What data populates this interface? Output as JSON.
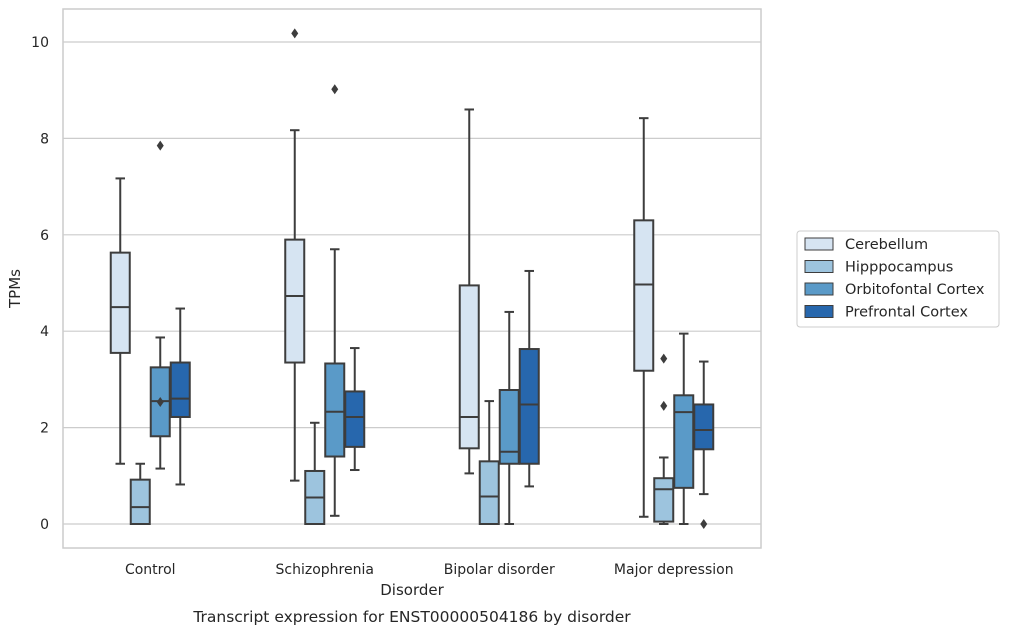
{
  "chart_data": {
    "type": "box",
    "title": "",
    "caption": "Transcript expression for ENST00000504186 by disorder",
    "xlabel": "Disorder",
    "ylabel": "TPMs",
    "ylim": [
      -0.45,
      10.7
    ],
    "yticks": [
      0,
      2,
      4,
      6,
      8,
      10
    ],
    "grid": true,
    "legend_position": "right",
    "categories": [
      "Control",
      "Schizophrenia",
      "Bipolar disorder",
      "Major depression"
    ],
    "series": [
      {
        "name": "Cerebellum",
        "color": "#d6e4f2",
        "boxes": [
          {
            "whisker_low": 1.25,
            "q1": 3.55,
            "median": 4.5,
            "q3": 5.63,
            "whisker_high": 7.17,
            "outliers": []
          },
          {
            "whisker_low": 0.9,
            "q1": 3.35,
            "median": 4.73,
            "q3": 5.9,
            "whisker_high": 8.17,
            "outliers": [
              10.18
            ]
          },
          {
            "whisker_low": 1.05,
            "q1": 1.57,
            "median": 2.22,
            "q3": 4.95,
            "whisker_high": 8.6,
            "outliers": []
          },
          {
            "whisker_low": 0.15,
            "q1": 3.18,
            "median": 4.97,
            "q3": 6.3,
            "whisker_high": 8.42,
            "outliers": []
          }
        ]
      },
      {
        "name": "Hipppocampus",
        "color": "#9dc4de",
        "boxes": [
          {
            "whisker_low": 0.0,
            "q1": 0.0,
            "median": 0.35,
            "q3": 0.92,
            "whisker_high": 1.25,
            "outliers": []
          },
          {
            "whisker_low": 0.0,
            "q1": 0.0,
            "median": 0.55,
            "q3": 1.1,
            "whisker_high": 2.1,
            "outliers": []
          },
          {
            "whisker_low": 0.0,
            "q1": 0.0,
            "median": 0.57,
            "q3": 1.3,
            "whisker_high": 2.55,
            "outliers": []
          },
          {
            "whisker_low": 0.0,
            "q1": 0.05,
            "median": 0.72,
            "q3": 0.95,
            "whisker_high": 1.38,
            "outliers": [
              2.45,
              3.43
            ]
          }
        ]
      },
      {
        "name": "Orbitofontal Cortex",
        "color": "#5a9ac8",
        "boxes": [
          {
            "whisker_low": 1.15,
            "q1": 1.82,
            "median": 2.55,
            "q3": 3.25,
            "whisker_high": 3.87,
            "outliers": [
              2.53,
              7.85
            ]
          },
          {
            "whisker_low": 0.17,
            "q1": 1.4,
            "median": 2.33,
            "q3": 3.33,
            "whisker_high": 5.7,
            "outliers": [
              9.02
            ]
          },
          {
            "whisker_low": 0.0,
            "q1": 1.25,
            "median": 1.5,
            "q3": 2.78,
            "whisker_high": 4.4,
            "outliers": []
          },
          {
            "whisker_low": 0.0,
            "q1": 0.75,
            "median": 2.32,
            "q3": 2.67,
            "whisker_high": 3.95,
            "outliers": []
          }
        ]
      },
      {
        "name": "Prefrontal Cortex",
        "color": "#2767ad",
        "boxes": [
          {
            "whisker_low": 0.82,
            "q1": 2.22,
            "median": 2.6,
            "q3": 3.35,
            "whisker_high": 4.47,
            "outliers": []
          },
          {
            "whisker_low": 1.12,
            "q1": 1.6,
            "median": 2.22,
            "q3": 2.75,
            "whisker_high": 3.65,
            "outliers": []
          },
          {
            "whisker_low": 0.78,
            "q1": 1.25,
            "median": 2.48,
            "q3": 3.63,
            "whisker_high": 5.25,
            "outliers": []
          },
          {
            "whisker_low": 0.62,
            "q1": 1.55,
            "median": 1.95,
            "q3": 2.48,
            "whisker_high": 3.37,
            "outliers": [
              0.0
            ]
          }
        ]
      }
    ]
  }
}
